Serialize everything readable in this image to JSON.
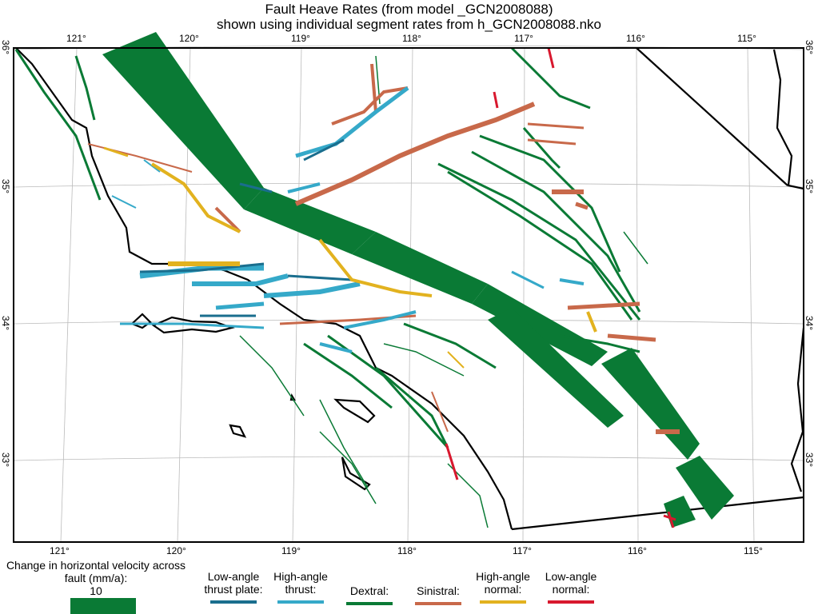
{
  "title_line1": "Fault Heave Rates (from model _GCN2008088)",
  "title_line2": "shown using individual segment rates from h_GCN2008088.nko",
  "lon_ticks": [
    "121°",
    "120°",
    "119°",
    "118°",
    "117°",
    "116°",
    "115°"
  ],
  "lat_ticks": [
    "36°",
    "35°",
    "34°",
    "33°"
  ],
  "legend": {
    "scale_title": "Change in horizontal velocity across fault (mm/a):",
    "scale_value": "10",
    "types": [
      {
        "label": "Low-angle thrust plate:",
        "color": "#1a6e8e"
      },
      {
        "label": "High-angle thrust:",
        "color": "#35a9c9"
      },
      {
        "label": "Dextral:",
        "color": "#0a7a35"
      },
      {
        "label": "Sinistral:",
        "color": "#c8694a"
      },
      {
        "label": "High-angle normal:",
        "color": "#e2b21f"
      },
      {
        "label": "Low-angle normal:",
        "color": "#d8182e"
      }
    ]
  },
  "colors": {
    "dextral": "#0a7a35",
    "sinistral": "#c8694a",
    "thrust": "#35a9c9",
    "thrust_plate": "#1a6e8e",
    "normal": "#e2b21f",
    "low_normal": "#d8182e"
  }
}
